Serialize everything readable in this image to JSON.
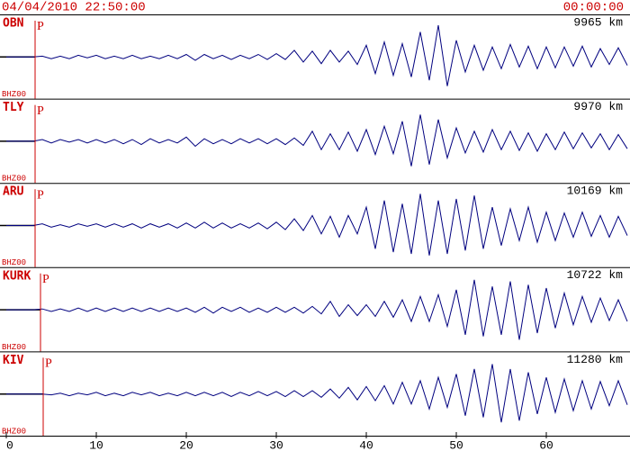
{
  "chart_data": {
    "type": "line",
    "title": "04/04/2010 22:50:00",
    "clock": "00:00:00",
    "x": [
      0,
      1,
      2,
      3,
      4,
      5,
      6,
      7,
      8,
      9,
      10,
      11,
      12,
      13,
      14,
      15,
      16,
      17,
      18,
      19,
      20,
      21,
      22,
      23,
      24,
      25,
      26,
      27,
      28,
      29,
      30,
      31,
      32,
      33,
      34,
      35,
      36,
      37,
      38,
      39,
      40,
      41,
      42,
      43,
      44,
      45,
      46,
      47,
      48,
      49,
      50,
      51,
      52,
      53,
      54,
      55,
      56,
      57,
      58,
      59,
      60,
      61,
      62,
      63,
      64,
      65,
      66,
      67,
      68,
      69
    ],
    "xlim": [
      -0.5,
      69.3
    ],
    "xticks": [
      0,
      10,
      20,
      30,
      40,
      50,
      60
    ],
    "ylim": [
      -50,
      50
    ],
    "series": [
      {
        "name": "OBN",
        "channel": "BHZ00",
        "distance": "9965 km",
        "phase": "P",
        "p_arrival": 3.2,
        "color": "#00007f",
        "values": [
          0,
          0,
          0,
          0,
          1,
          -2,
          1,
          -2,
          2,
          -1,
          2,
          -2,
          1,
          -2,
          2,
          -2,
          1,
          -2,
          2,
          -2,
          3,
          -4,
          3,
          -2,
          2,
          -3,
          2,
          -2,
          3,
          -3,
          4,
          -3,
          8,
          -6,
          7,
          -8,
          8,
          -6,
          7,
          -9,
          14,
          -20,
          18,
          -22,
          16,
          -24,
          30,
          -28,
          38,
          -35,
          20,
          -18,
          14,
          -16,
          12,
          -14,
          15,
          -12,
          13,
          -14,
          12,
          -13,
          12,
          -11,
          13,
          -12,
          10,
          -9,
          11,
          -10
        ]
      },
      {
        "name": "TLY",
        "channel": "BHZ00",
        "distance": "9970 km",
        "phase": "P",
        "p_arrival": 3.2,
        "color": "#00007f",
        "values": [
          0,
          0,
          0,
          0,
          2,
          -2,
          2,
          -1,
          2,
          -2,
          2,
          -2,
          2,
          -3,
          2,
          -4,
          3,
          -2,
          2,
          -2,
          5,
          -6,
          3,
          -3,
          2,
          -3,
          3,
          -2,
          3,
          -3,
          3,
          -4,
          4,
          -5,
          12,
          -10,
          9,
          -10,
          11,
          -12,
          14,
          -16,
          18,
          -15,
          24,
          -30,
          32,
          -28,
          26,
          -20,
          16,
          -14,
          12,
          -13,
          14,
          -10,
          12,
          -11,
          10,
          -12,
          9,
          -10,
          11,
          -9,
          10,
          -8,
          9,
          -10,
          8,
          -9
        ]
      },
      {
        "name": "ARU",
        "channel": "BHZ00",
        "distance": "10169 km",
        "phase": "P",
        "p_arrival": 3.2,
        "color": "#00007f",
        "values": [
          0,
          0,
          0,
          0,
          2,
          -2,
          1,
          -2,
          2,
          -1,
          2,
          -2,
          2,
          -2,
          2,
          -3,
          2,
          -2,
          2,
          -3,
          3,
          -3,
          4,
          -3,
          3,
          -3,
          2,
          -3,
          3,
          -4,
          4,
          -5,
          8,
          -6,
          12,
          -10,
          11,
          -14,
          12,
          -10,
          22,
          -28,
          30,
          -32,
          26,
          -34,
          38,
          -36,
          30,
          -34,
          32,
          -30,
          36,
          -28,
          22,
          -24,
          20,
          -18,
          22,
          -20,
          16,
          -18,
          15,
          -14,
          16,
          -13,
          12,
          -14,
          11,
          -12
        ]
      },
      {
        "name": "KURK",
        "channel": "BHZ00",
        "distance": "10722 km",
        "phase": "P",
        "p_arrival": 3.8,
        "color": "#00007f",
        "values": [
          0,
          0,
          0,
          0,
          1,
          -2,
          1,
          -2,
          2,
          -2,
          2,
          -2,
          2,
          -2,
          2,
          -2,
          2,
          -2,
          2,
          -2,
          2,
          -3,
          3,
          -4,
          3,
          -2,
          3,
          -3,
          2,
          -3,
          3,
          -3,
          3,
          -4,
          4,
          -5,
          10,
          -8,
          6,
          -7,
          6,
          -8,
          10,
          -9,
          12,
          -14,
          16,
          -14,
          18,
          -20,
          24,
          -30,
          36,
          -32,
          28,
          -30,
          34,
          -36,
          30,
          -28,
          26,
          -22,
          20,
          -18,
          16,
          -15,
          14,
          -13,
          12,
          -14
        ]
      },
      {
        "name": "KIV",
        "channel": "BHZ00",
        "distance": "11280 km",
        "phase": "P",
        "p_arrival": 4.1,
        "color": "#00007f",
        "values": [
          0,
          0,
          0,
          0,
          0,
          -1,
          1,
          -2,
          1,
          -1,
          2,
          -2,
          1,
          -2,
          2,
          -1,
          2,
          -2,
          1,
          -2,
          2,
          -2,
          2,
          -2,
          2,
          -3,
          2,
          -2,
          3,
          -2,
          3,
          -3,
          4,
          -3,
          4,
          -4,
          6,
          -5,
          8,
          -7,
          9,
          -8,
          10,
          -12,
          14,
          -12,
          16,
          -18,
          20,
          -16,
          24,
          -26,
          30,
          -28,
          36,
          -34,
          30,
          -32,
          26,
          -24,
          20,
          -22,
          18,
          -20,
          16,
          -18,
          15,
          -14,
          16,
          -13
        ]
      }
    ]
  }
}
